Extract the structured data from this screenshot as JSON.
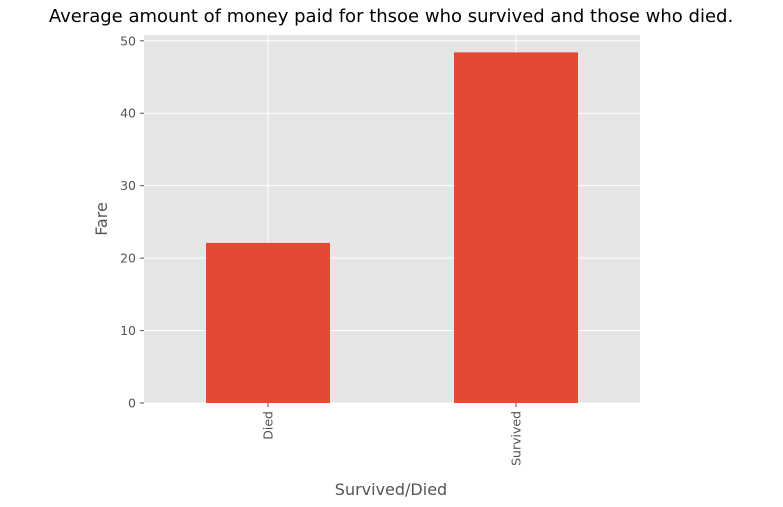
{
  "chart_data": {
    "type": "bar",
    "title": "Average amount of money paid for thsoe who survived and those who died.",
    "xlabel": "Survived/Died",
    "ylabel": "Fare",
    "categories": [
      "Died",
      "Survived"
    ],
    "values": [
      22.1,
      48.4
    ],
    "ylim": [
      0,
      50.8
    ],
    "yticks": [
      0,
      10,
      20,
      30,
      40,
      50
    ],
    "grid": true,
    "style": "ggplot",
    "colors": {
      "bar": "#E24A33",
      "plot_background": "#E5E5E5",
      "grid": "#FFFFFF",
      "tick_text": "#555555",
      "title_text": "#000000"
    }
  }
}
